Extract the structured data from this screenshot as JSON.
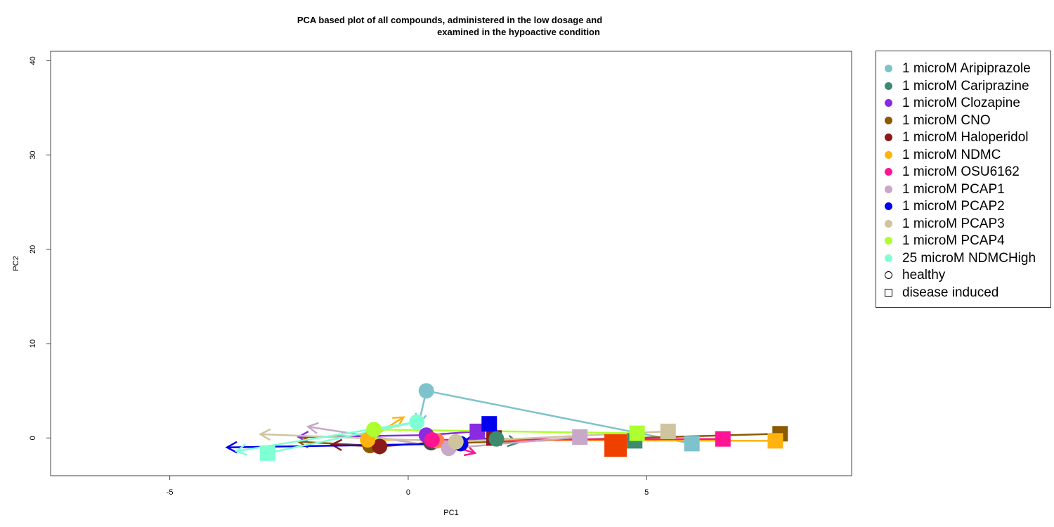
{
  "chart_data": {
    "type": "scatter",
    "title_line1": "PCA based plot of all compounds, administered in the low dosage and",
    "title_line2": "examined in the hypoactive condition",
    "xlabel": "PC1",
    "ylabel": "PC2",
    "xlim": [
      -7.5,
      9.3
    ],
    "ylim": [
      -4,
      41
    ],
    "xticks": [
      -5,
      0,
      5
    ],
    "yticks": [
      0,
      10,
      20,
      30,
      40
    ],
    "grid": false,
    "legend_position": "right",
    "series": [
      {
        "name": "1 microM Aripiprazole",
        "color": "#7ec3cc",
        "healthy": [
          0.38,
          5.0
        ],
        "disease": [
          5.95,
          -0.6
        ],
        "arrow_end": [
          0.22,
          1.5
        ]
      },
      {
        "name": "1 microM Cariprazine",
        "color": "#3e8a6f",
        "healthy": [
          1.85,
          -0.1
        ],
        "disease": [
          4.75,
          -0.3
        ],
        "arrow_end": [
          2.3,
          -0.5
        ]
      },
      {
        "name": "1 microM Clozapine",
        "color": "#8a2be2",
        "healthy": [
          0.38,
          0.3
        ],
        "disease": [
          1.45,
          0.7
        ],
        "arrow_end": [
          -2.3,
          0.1
        ]
      },
      {
        "name": "1 microM CNO",
        "color": "#8b5a00",
        "healthy": [
          -0.8,
          -0.8
        ],
        "disease": [
          7.8,
          0.45
        ],
        "arrow_end": [
          -2.3,
          -0.4
        ]
      },
      {
        "name": "1 microM Haloperidol",
        "color": "#8b1a1a",
        "healthy": [
          -0.6,
          -0.9
        ],
        "disease": [
          1.8,
          0.0
        ],
        "arrow_end": [
          -1.6,
          -0.7
        ]
      },
      {
        "name": "1 microM NDMC",
        "color": "#ffb30f",
        "healthy": [
          -0.85,
          -0.2
        ],
        "disease": [
          7.7,
          -0.3
        ],
        "arrow_end": [
          -0.1,
          2.2
        ]
      },
      {
        "name": "1 microM OSU6162",
        "color": "#ff1493",
        "healthy": [
          0.5,
          -0.2
        ],
        "disease": [
          6.6,
          -0.1
        ],
        "arrow_end": [
          1.4,
          -1.6
        ]
      },
      {
        "name": "1 microM PCAP1",
        "color": "#c8a8c8",
        "healthy": [
          0.85,
          -1.1
        ],
        "disease": [
          3.6,
          0.1
        ],
        "arrow_end": [
          -2.1,
          1.2
        ]
      },
      {
        "name": "1 microM PCAP2",
        "color": "#0000ee",
        "healthy": [
          1.1,
          -0.6
        ],
        "disease": [
          1.7,
          1.5
        ],
        "arrow_end": [
          -3.8,
          -1.0
        ]
      },
      {
        "name": "1 microM PCAP3",
        "color": "#cfc4a0",
        "healthy": [
          1.0,
          -0.4
        ],
        "disease": [
          5.45,
          0.7
        ],
        "arrow_end": [
          -3.1,
          0.4
        ]
      },
      {
        "name": "1 microM PCAP4",
        "color": "#adff2f",
        "healthy": [
          -0.72,
          0.9
        ],
        "disease": [
          4.8,
          0.5
        ],
        "arrow_end": [
          -0.6,
          -1.7
        ]
      },
      {
        "name": "25 microM NDMCHigh",
        "color": "#7fffd4",
        "healthy": [
          0.18,
          1.7
        ],
        "disease": [
          -2.95,
          -1.6
        ],
        "arrow_end": [
          -3.6,
          -1.4
        ]
      }
    ],
    "extra_disease_points": [
      {
        "color": "#f04000",
        "at": [
          4.35,
          -0.8
        ]
      }
    ],
    "extra_healthy_points": [
      {
        "color": "#4a4a4a",
        "at": [
          0.48,
          -0.5
        ]
      },
      {
        "color": "#ff7f50",
        "at": [
          0.6,
          -0.3
        ]
      }
    ],
    "shape_legend": [
      {
        "label": "healthy",
        "shape": "circle"
      },
      {
        "label": "disease induced",
        "shape": "square"
      }
    ]
  }
}
